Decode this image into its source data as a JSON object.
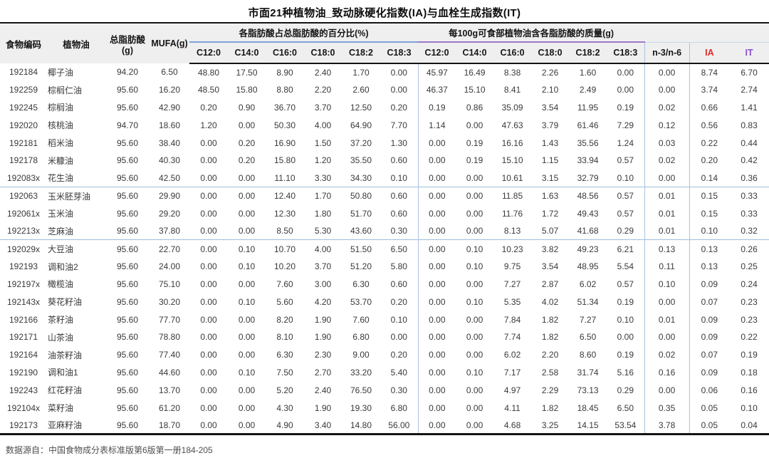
{
  "title": "市面21种植物油_致动脉硬化指数(IA)与血栓生成指数(IT)",
  "source_note": "数据源自：中国食物成分表标准版第6版第一册184-205",
  "colors": {
    "ia_header": "#e02a2a",
    "it_header": "#8a4fc8",
    "percent_group_underline": "#7aa3d4",
    "mass_group_underline": "#9a7ac6",
    "column_divider": "#a9c4de",
    "header_background": "#efefef"
  },
  "header": {
    "fixed": [
      "食物编码",
      "植物油",
      "总脂肪酸(g)",
      "MUFA(g)"
    ],
    "group_percent": "各脂肪酸占总脂肪酸的百分比(%)",
    "group_mass": "每100g可食部植物油含各脂肪酸的质量(g)",
    "pct_cols": [
      "C12:0",
      "C14:0",
      "C16:0",
      "C18:0",
      "C18:2",
      "C18:3"
    ],
    "mass_cols": [
      "C12:0",
      "C14:0",
      "C16:0",
      "C18:0",
      "C18:2",
      "C18:3"
    ],
    "tail": [
      "n-3/n-6",
      "IA",
      "IT"
    ]
  },
  "chart_data": {
    "type": "table",
    "title": "市面21种植物油_致动脉硬化指数(IA)与血栓生成指数(IT)",
    "columns": [
      "食物编码",
      "植物油",
      "总脂肪酸(g)",
      "MUFA(g)",
      "C12:0(%)",
      "C14:0(%)",
      "C16:0(%)",
      "C18:0(%)",
      "C18:2(%)",
      "C18:3(%)",
      "C12:0(g)",
      "C14:0(g)",
      "C16:0(g)",
      "C18:0(g)",
      "C18:2(g)",
      "C18:3(g)",
      "n-3/n-6",
      "IA",
      "IT"
    ],
    "separator_after_rows": [
      6,
      9
    ],
    "source": "数据源自：中国食物成分表标准版第6版第一册184-205",
    "rows": [
      [
        "192184",
        "椰子油",
        "94.20",
        "6.50",
        "48.80",
        "17.50",
        "8.90",
        "2.40",
        "1.70",
        "0.00",
        "45.97",
        "16.49",
        "8.38",
        "2.26",
        "1.60",
        "0.00",
        "0.00",
        "8.74",
        "6.70"
      ],
      [
        "192259",
        "棕榈仁油",
        "95.60",
        "16.20",
        "48.50",
        "15.80",
        "8.80",
        "2.20",
        "2.60",
        "0.00",
        "46.37",
        "15.10",
        "8.41",
        "2.10",
        "2.49",
        "0.00",
        "0.00",
        "3.74",
        "2.74"
      ],
      [
        "192245",
        "棕榈油",
        "95.60",
        "42.90",
        "0.20",
        "0.90",
        "36.70",
        "3.70",
        "12.50",
        "0.20",
        "0.19",
        "0.86",
        "35.09",
        "3.54",
        "11.95",
        "0.19",
        "0.02",
        "0.66",
        "1.41"
      ],
      [
        "192020",
        "核桃油",
        "94.70",
        "18.60",
        "1.20",
        "0.00",
        "50.30",
        "4.00",
        "64.90",
        "7.70",
        "1.14",
        "0.00",
        "47.63",
        "3.79",
        "61.46",
        "7.29",
        "0.12",
        "0.56",
        "0.83"
      ],
      [
        "192181",
        "稻米油",
        "95.60",
        "38.40",
        "0.00",
        "0.20",
        "16.90",
        "1.50",
        "37.20",
        "1.30",
        "0.00",
        "0.19",
        "16.16",
        "1.43",
        "35.56",
        "1.24",
        "0.03",
        "0.22",
        "0.44"
      ],
      [
        "192178",
        "米糠油",
        "95.60",
        "40.30",
        "0.00",
        "0.20",
        "15.80",
        "1.20",
        "35.50",
        "0.60",
        "0.00",
        "0.19",
        "15.10",
        "1.15",
        "33.94",
        "0.57",
        "0.02",
        "0.20",
        "0.42"
      ],
      [
        "192083x",
        "花生油",
        "95.60",
        "42.50",
        "0.00",
        "0.00",
        "11.10",
        "3.30",
        "34.30",
        "0.10",
        "0.00",
        "0.00",
        "10.61",
        "3.15",
        "32.79",
        "0.10",
        "0.00",
        "0.14",
        "0.36"
      ],
      [
        "192063",
        "玉米胚芽油",
        "95.60",
        "29.90",
        "0.00",
        "0.00",
        "12.40",
        "1.70",
        "50.80",
        "0.60",
        "0.00",
        "0.00",
        "11.85",
        "1.63",
        "48.56",
        "0.57",
        "0.01",
        "0.15",
        "0.33"
      ],
      [
        "192061x",
        "玉米油",
        "95.60",
        "29.20",
        "0.00",
        "0.00",
        "12.30",
        "1.80",
        "51.70",
        "0.60",
        "0.00",
        "0.00",
        "11.76",
        "1.72",
        "49.43",
        "0.57",
        "0.01",
        "0.15",
        "0.33"
      ],
      [
        "192213x",
        "芝麻油",
        "95.60",
        "37.80",
        "0.00",
        "0.00",
        "8.50",
        "5.30",
        "43.60",
        "0.30",
        "0.00",
        "0.00",
        "8.13",
        "5.07",
        "41.68",
        "0.29",
        "0.01",
        "0.10",
        "0.32"
      ],
      [
        "192029x",
        "大豆油",
        "95.60",
        "22.70",
        "0.00",
        "0.10",
        "10.70",
        "4.00",
        "51.50",
        "6.50",
        "0.00",
        "0.10",
        "10.23",
        "3.82",
        "49.23",
        "6.21",
        "0.13",
        "0.13",
        "0.26"
      ],
      [
        "192193",
        "调和油2",
        "95.60",
        "24.00",
        "0.00",
        "0.10",
        "10.20",
        "3.70",
        "51.20",
        "5.80",
        "0.00",
        "0.10",
        "9.75",
        "3.54",
        "48.95",
        "5.54",
        "0.11",
        "0.13",
        "0.25"
      ],
      [
        "192197x",
        "橄榄油",
        "95.60",
        "75.10",
        "0.00",
        "0.00",
        "7.60",
        "3.00",
        "6.30",
        "0.60",
        "0.00",
        "0.00",
        "7.27",
        "2.87",
        "6.02",
        "0.57",
        "0.10",
        "0.09",
        "0.24"
      ],
      [
        "192143x",
        "葵花籽油",
        "95.60",
        "30.20",
        "0.00",
        "0.10",
        "5.60",
        "4.20",
        "53.70",
        "0.20",
        "0.00",
        "0.10",
        "5.35",
        "4.02",
        "51.34",
        "0.19",
        "0.00",
        "0.07",
        "0.23"
      ],
      [
        "192166",
        "茶籽油",
        "95.60",
        "77.70",
        "0.00",
        "0.00",
        "8.20",
        "1.90",
        "7.60",
        "0.10",
        "0.00",
        "0.00",
        "7.84",
        "1.82",
        "7.27",
        "0.10",
        "0.01",
        "0.09",
        "0.23"
      ],
      [
        "192171",
        "山茶油",
        "95.60",
        "78.80",
        "0.00",
        "0.00",
        "8.10",
        "1.90",
        "6.80",
        "0.00",
        "0.00",
        "0.00",
        "7.74",
        "1.82",
        "6.50",
        "0.00",
        "0.00",
        "0.09",
        "0.22"
      ],
      [
        "192164",
        "油茶籽油",
        "95.60",
        "77.40",
        "0.00",
        "0.00",
        "6.30",
        "2.30",
        "9.00",
        "0.20",
        "0.00",
        "0.00",
        "6.02",
        "2.20",
        "8.60",
        "0.19",
        "0.02",
        "0.07",
        "0.19"
      ],
      [
        "192190",
        "调和油1",
        "95.60",
        "44.60",
        "0.00",
        "0.10",
        "7.50",
        "2.70",
        "33.20",
        "5.40",
        "0.00",
        "0.10",
        "7.17",
        "2.58",
        "31.74",
        "5.16",
        "0.16",
        "0.09",
        "0.18"
      ],
      [
        "192243",
        "红花籽油",
        "95.60",
        "13.70",
        "0.00",
        "0.00",
        "5.20",
        "2.40",
        "76.50",
        "0.30",
        "0.00",
        "0.00",
        "4.97",
        "2.29",
        "73.13",
        "0.29",
        "0.00",
        "0.06",
        "0.16"
      ],
      [
        "192104x",
        "菜籽油",
        "95.60",
        "61.20",
        "0.00",
        "0.00",
        "4.30",
        "1.90",
        "19.30",
        "6.80",
        "0.00",
        "0.00",
        "4.11",
        "1.82",
        "18.45",
        "6.50",
        "0.35",
        "0.05",
        "0.10"
      ],
      [
        "192173",
        "亚麻籽油",
        "95.60",
        "18.70",
        "0.00",
        "0.00",
        "4.90",
        "3.40",
        "14.80",
        "56.00",
        "0.00",
        "0.00",
        "4.68",
        "3.25",
        "14.15",
        "53.54",
        "3.78",
        "0.05",
        "0.04"
      ]
    ]
  }
}
